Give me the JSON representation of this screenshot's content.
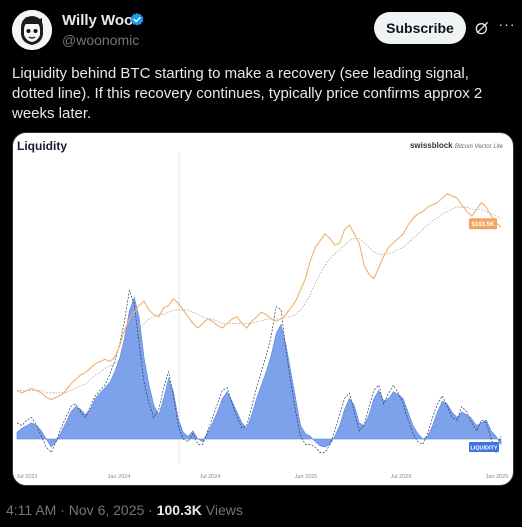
{
  "post": {
    "author_name": "Willy Woo",
    "author_handle": "@woonomic",
    "subscribe_label": "Subscribe",
    "more_label": "···",
    "text": "Liquidity behind BTC starting to make a recovery (see leading signal, dotted line). If this recovery continues, typically price confirms approx 2 weeks later.",
    "time": "4:11 AM",
    "date": "Nov 6, 2025",
    "views_count": "100.3K",
    "views_label": "Views",
    "sep": "·"
  },
  "icons": {
    "verified": "verified-badge-icon",
    "grok": "grok-icon",
    "more": "more-icon"
  },
  "colors": {
    "price_line": "#f0b16a",
    "liquidity_fill": "#6f97e8",
    "price_label_bg": "#f0a45d",
    "liquidity_label_bg": "#3f73e0",
    "verified": "#1d9bf0"
  },
  "chart_data": {
    "type": "area",
    "title": "Liquidity",
    "brand": "swissblock",
    "brand_sub": "Bitcoin Vector Lite",
    "x_ticks": [
      "Jul 2023",
      "Jan 2024",
      "Jul 2024",
      "Jan 2025",
      "Jul 2025",
      "Jan 2026"
    ],
    "price_label": "$103.5K",
    "liquidity_label": "LIQUIDITY",
    "series": [
      {
        "name": "price",
        "values": [
          30,
          29,
          30,
          31,
          30,
          29,
          27,
          26,
          27,
          28,
          30,
          33,
          35,
          37,
          38,
          40,
          42,
          43,
          44,
          43,
          45,
          50,
          57,
          62,
          65,
          68,
          70,
          66,
          64,
          63,
          67,
          68,
          71,
          69,
          66,
          63,
          60,
          58,
          60,
          62,
          61,
          59,
          58,
          60,
          62,
          63,
          60,
          58,
          61,
          63,
          65,
          64,
          62,
          61,
          62,
          64,
          67,
          70,
          75,
          80,
          88,
          94,
          97,
          100,
          98,
          95,
          96,
          102,
          104,
          100,
          96,
          86,
          82,
          80,
          85,
          90,
          94,
          96,
          98,
          100,
          104,
          107,
          109,
          110,
          112,
          113,
          114,
          116,
          118,
          117,
          116,
          113,
          110,
          108,
          111,
          114,
          112,
          108,
          105,
          103
        ]
      },
      {
        "name": "price_ma",
        "values": [
          30,
          30,
          30,
          30,
          30,
          30,
          29,
          29,
          29,
          29,
          29,
          30,
          31,
          32,
          33,
          35,
          37,
          38,
          40,
          41,
          42,
          44,
          47,
          50,
          53,
          57,
          60,
          62,
          63,
          64,
          64,
          65,
          66,
          66,
          66,
          66,
          65,
          64,
          63,
          62,
          62,
          61,
          60,
          60,
          60,
          60,
          60,
          60,
          60,
          61,
          61,
          62,
          62,
          62,
          62,
          63,
          63,
          64,
          66,
          69,
          73,
          78,
          82,
          86,
          89,
          91,
          93,
          95,
          97,
          98,
          98,
          96,
          94,
          92,
          91,
          91,
          91,
          92,
          93,
          94,
          96,
          98,
          100,
          102,
          104,
          106,
          107,
          109,
          110,
          111,
          112,
          112,
          112,
          111,
          111,
          111,
          110,
          109,
          108,
          107
        ]
      },
      {
        "name": "liquidity",
        "values": [
          0.05,
          0.08,
          0.1,
          0.12,
          0.1,
          0.06,
          0.0,
          -0.06,
          -0.02,
          0.05,
          0.12,
          0.2,
          0.24,
          0.22,
          0.18,
          0.22,
          0.3,
          0.34,
          0.38,
          0.42,
          0.5,
          0.6,
          0.75,
          0.95,
          1.05,
          0.9,
          0.6,
          0.4,
          0.25,
          0.18,
          0.3,
          0.45,
          0.35,
          0.15,
          0.05,
          0.02,
          0.06,
          0.0,
          -0.02,
          0.05,
          0.12,
          0.2,
          0.3,
          0.35,
          0.28,
          0.2,
          0.12,
          0.08,
          0.18,
          0.3,
          0.4,
          0.5,
          0.62,
          0.78,
          0.85,
          0.7,
          0.5,
          0.3,
          0.1,
          0.04,
          0.02,
          -0.02,
          -0.05,
          -0.06,
          -0.04,
          0.02,
          0.1,
          0.22,
          0.3,
          0.25,
          0.12,
          0.1,
          0.18,
          0.3,
          0.36,
          0.28,
          0.3,
          0.35,
          0.33,
          0.3,
          0.2,
          0.1,
          0.04,
          0.0,
          0.02,
          0.1,
          0.2,
          0.28,
          0.26,
          0.2,
          0.16,
          0.2,
          0.18,
          0.15,
          0.1,
          0.12,
          0.14,
          0.06,
          0.02,
          -0.04
        ]
      },
      {
        "name": "liquidity_signal",
        "values": [
          0.12,
          0.1,
          0.14,
          0.16,
          0.1,
          0.02,
          -0.06,
          -0.1,
          -0.02,
          0.08,
          0.16,
          0.24,
          0.26,
          0.2,
          0.16,
          0.24,
          0.32,
          0.36,
          0.4,
          0.48,
          0.58,
          0.7,
          0.88,
          1.1,
          1.0,
          0.7,
          0.42,
          0.26,
          0.16,
          0.22,
          0.38,
          0.5,
          0.32,
          0.1,
          0.0,
          -0.02,
          0.04,
          -0.04,
          -0.04,
          0.06,
          0.16,
          0.26,
          0.36,
          0.38,
          0.26,
          0.16,
          0.08,
          0.1,
          0.24,
          0.38,
          0.5,
          0.62,
          0.76,
          0.98,
          0.96,
          0.66,
          0.42,
          0.2,
          0.02,
          -0.04,
          -0.04,
          -0.06,
          -0.1,
          -0.1,
          -0.04,
          0.06,
          0.18,
          0.3,
          0.34,
          0.2,
          0.06,
          0.1,
          0.24,
          0.36,
          0.4,
          0.26,
          0.34,
          0.4,
          0.34,
          0.26,
          0.14,
          0.04,
          -0.02,
          -0.04,
          0.04,
          0.16,
          0.26,
          0.32,
          0.24,
          0.16,
          0.14,
          0.24,
          0.2,
          0.12,
          0.06,
          0.14,
          0.12,
          0.0,
          -0.1,
          0.02
        ]
      }
    ]
  }
}
